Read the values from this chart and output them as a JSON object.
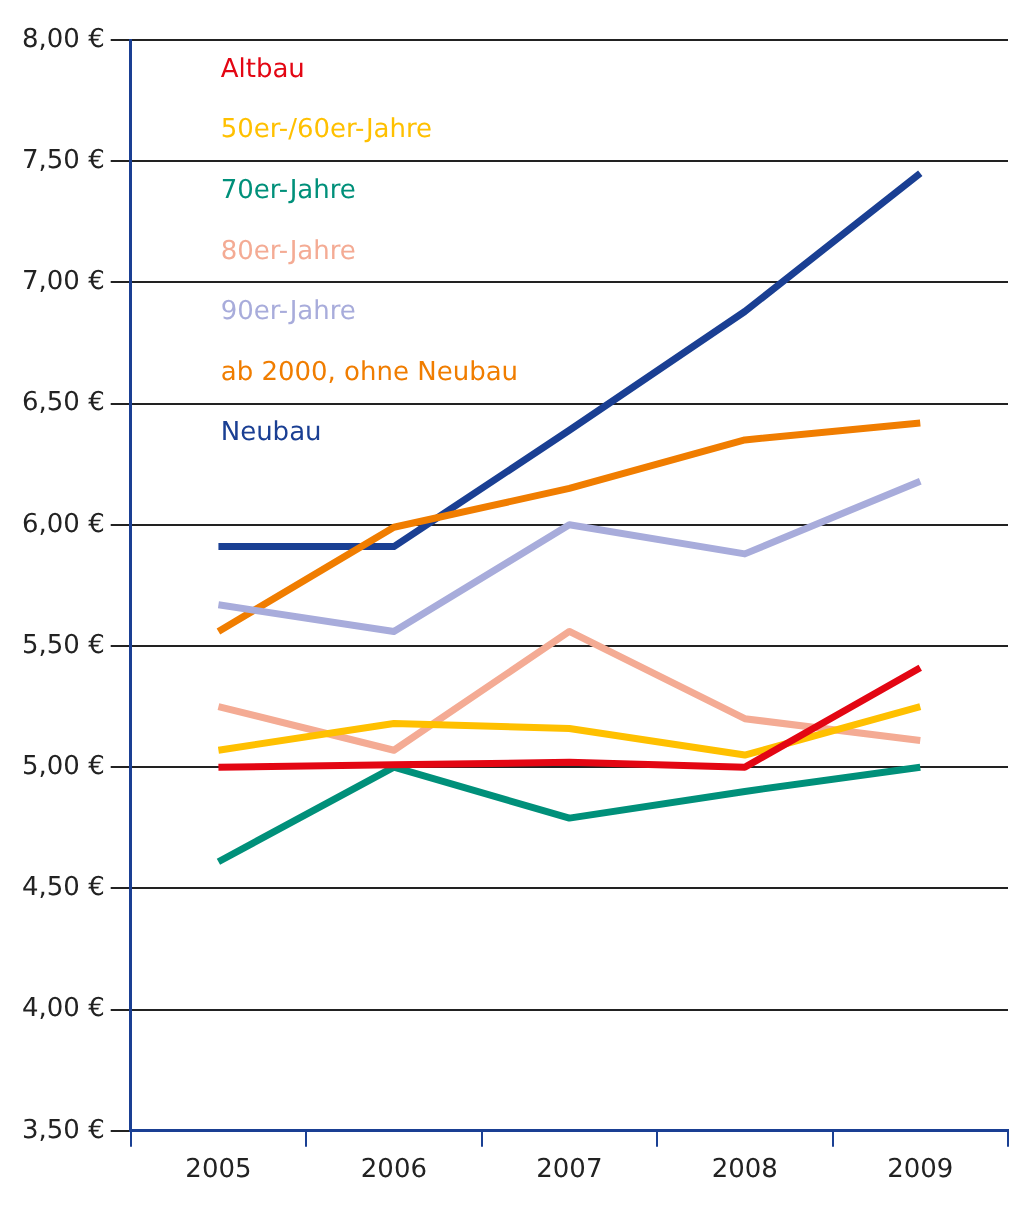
{
  "chart_data": {
    "type": "line",
    "categories": [
      "2005",
      "2006",
      "2007",
      "2008",
      "2009"
    ],
    "ylim": [
      3.5,
      8
    ],
    "yticks": [
      {
        "value": 3.5,
        "label": "3,50 €"
      },
      {
        "value": 4,
        "label": "4,00 €"
      },
      {
        "value": 4.5,
        "label": "4,50 €"
      },
      {
        "value": 5,
        "label": "5,00 €"
      },
      {
        "value": 5.5,
        "label": "5,50 €"
      },
      {
        "value": 6,
        "label": "6,00 €"
      },
      {
        "value": 6.5,
        "label": "6,50 €"
      },
      {
        "value": 7,
        "label": "7,00 €"
      },
      {
        "value": 7.5,
        "label": "7,50 €"
      },
      {
        "value": 8,
        "label": "8,00 €"
      }
    ],
    "grid": "y",
    "legend": "top left",
    "marker": "none",
    "line_style": "solid",
    "series": [
      {
        "name": "Altbau",
        "color": "#e30613",
        "values": [
          5.0,
          5.01,
          5.02,
          5.0,
          5.41
        ]
      },
      {
        "name": "50er-/60er-Jahre",
        "color": "#ffc000",
        "values": [
          5.07,
          5.18,
          5.16,
          5.05,
          5.25
        ]
      },
      {
        "name": "70er-Jahre",
        "color": "#00907a",
        "values": [
          4.61,
          5.0,
          4.79,
          4.9,
          5.0
        ]
      },
      {
        "name": "80er-Jahre",
        "color": "#f4ab94",
        "values": [
          5.25,
          5.07,
          5.56,
          5.2,
          5.11
        ]
      },
      {
        "name": "90er-Jahre",
        "color": "#a8acdb",
        "values": [
          5.67,
          5.56,
          6.0,
          5.88,
          6.18
        ]
      },
      {
        "name": "ab 2000, ohne Neubau",
        "color": "#f07d00",
        "values": [
          5.56,
          5.99,
          6.15,
          6.35,
          6.42
        ]
      },
      {
        "name": "Neubau",
        "color": "#1a3f93",
        "values": [
          5.91,
          5.91,
          6.39,
          6.88,
          7.45
        ]
      }
    ]
  }
}
